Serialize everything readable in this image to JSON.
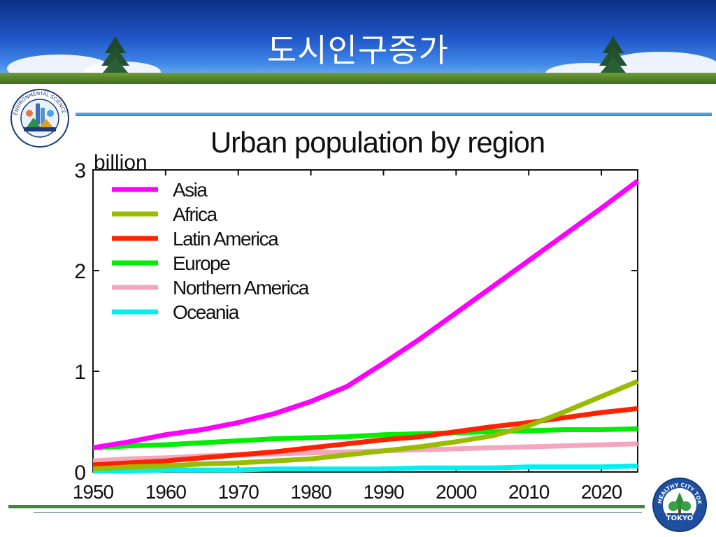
{
  "slide": {
    "title": "도시인구증가"
  },
  "logos": {
    "left_text": "ENVIRONMENTAL SCIENCE · PUBLIC HEALTH",
    "right_top": "HEALTHY CITY TOKYO",
    "right_bottom": "TOKYO"
  },
  "colors": {
    "banner_blue": "#1f56c6",
    "divider_blue": "#2a8ad1",
    "divider_green": "#3e8a3e"
  },
  "chart_data": {
    "type": "line",
    "title": "Urban population by region",
    "ylabel": "billion",
    "xlabel": "",
    "xlim": [
      1950,
      2025
    ],
    "ylim": [
      0,
      3
    ],
    "x_ticks": [
      1950,
      1960,
      1970,
      1980,
      1990,
      2000,
      2010,
      2020
    ],
    "y_ticks": [
      0,
      1,
      2,
      3
    ],
    "legend_position": "top-left",
    "grid": false,
    "series": [
      {
        "name": "Asia",
        "color": "#ff00ff",
        "x": [
          1950,
          1955,
          1960,
          1965,
          1970,
          1975,
          1980,
          1985,
          1990,
          1995,
          2000,
          2005,
          2010,
          2015,
          2020,
          2025
        ],
        "y": [
          0.24,
          0.3,
          0.37,
          0.42,
          0.49,
          0.58,
          0.7,
          0.85,
          1.08,
          1.32,
          1.58,
          1.84,
          2.1,
          2.36,
          2.62,
          2.89
        ]
      },
      {
        "name": "Africa",
        "color": "#99bb00",
        "x": [
          1950,
          1955,
          1960,
          1965,
          1970,
          1975,
          1980,
          1985,
          1990,
          1995,
          2000,
          2005,
          2010,
          2015,
          2020,
          2025
        ],
        "y": [
          0.03,
          0.05,
          0.06,
          0.08,
          0.09,
          0.11,
          0.13,
          0.17,
          0.21,
          0.25,
          0.3,
          0.36,
          0.46,
          0.6,
          0.75,
          0.9
        ]
      },
      {
        "name": "Latin America",
        "color": "#ff2200",
        "x": [
          1950,
          1955,
          1960,
          1965,
          1970,
          1975,
          1980,
          1985,
          1990,
          1995,
          2000,
          2005,
          2010,
          2015,
          2020,
          2025
        ],
        "y": [
          0.07,
          0.09,
          0.11,
          0.14,
          0.17,
          0.2,
          0.24,
          0.28,
          0.32,
          0.35,
          0.4,
          0.45,
          0.49,
          0.54,
          0.59,
          0.63
        ]
      },
      {
        "name": "Europe",
        "color": "#00ee00",
        "x": [
          1950,
          1955,
          1960,
          1965,
          1970,
          1975,
          1980,
          1985,
          1990,
          1995,
          2000,
          2005,
          2010,
          2015,
          2020,
          2025
        ],
        "y": [
          0.24,
          0.26,
          0.27,
          0.29,
          0.31,
          0.33,
          0.34,
          0.35,
          0.37,
          0.38,
          0.39,
          0.4,
          0.41,
          0.42,
          0.42,
          0.43
        ]
      },
      {
        "name": "Northern America",
        "color": "#f4a6bf",
        "x": [
          1950,
          1955,
          1960,
          1965,
          1970,
          1975,
          1980,
          1985,
          1990,
          1995,
          2000,
          2005,
          2010,
          2015,
          2020,
          2025
        ],
        "y": [
          0.11,
          0.13,
          0.14,
          0.16,
          0.17,
          0.18,
          0.19,
          0.2,
          0.21,
          0.22,
          0.23,
          0.24,
          0.25,
          0.26,
          0.27,
          0.28
        ]
      },
      {
        "name": "Oceania",
        "color": "#00f0f0",
        "x": [
          1950,
          1955,
          1960,
          1965,
          1970,
          1975,
          1980,
          1985,
          1990,
          1995,
          2000,
          2005,
          2010,
          2015,
          2020,
          2025
        ],
        "y": [
          0.01,
          0.01,
          0.02,
          0.02,
          0.02,
          0.03,
          0.03,
          0.03,
          0.03,
          0.04,
          0.04,
          0.04,
          0.05,
          0.05,
          0.05,
          0.06
        ]
      }
    ]
  }
}
